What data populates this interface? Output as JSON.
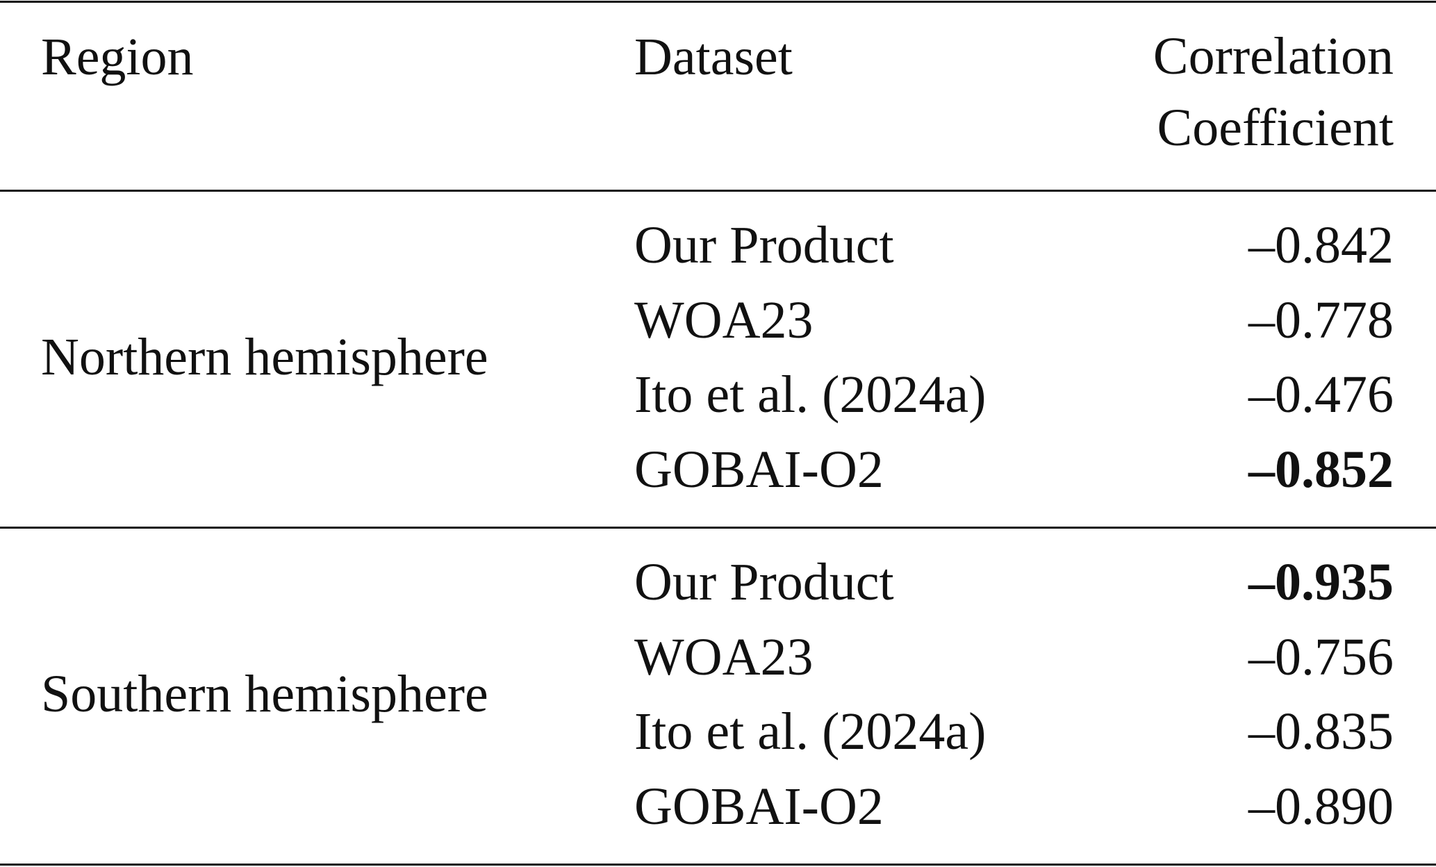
{
  "table": {
    "headers": [
      "Region",
      "Dataset",
      "Correlation Coefficient"
    ],
    "groups": [
      {
        "region": "Northern hemisphere",
        "rows": [
          {
            "dataset": "Our Product",
            "value": "–0.842"
          },
          {
            "dataset": "WOA23",
            "value": "–0.778"
          },
          {
            "dataset": "Ito et al. (2024a)",
            "value": "–0.476"
          },
          {
            "dataset": "GOBAI-O2",
            "value": "–0.852",
            "bold": true
          }
        ]
      },
      {
        "region": "Southern hemisphere",
        "rows": [
          {
            "dataset": "Our Product",
            "value": "–0.935",
            "bold": true
          },
          {
            "dataset": "WOA23",
            "value": "–0.756"
          },
          {
            "dataset": "Ito et al. (2024a)",
            "value": "–0.835"
          },
          {
            "dataset": "GOBAI-O2",
            "value": "–0.890"
          }
        ]
      }
    ]
  }
}
